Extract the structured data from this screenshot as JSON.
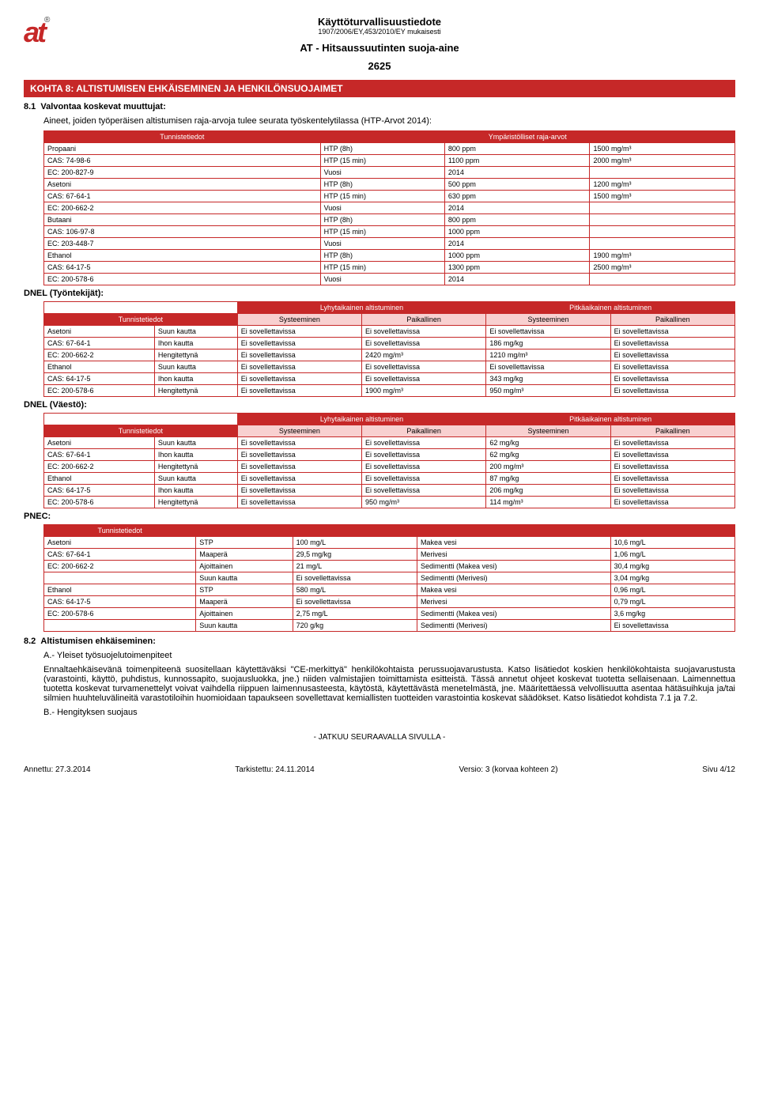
{
  "header": {
    "logo": "at",
    "logo_r": "®",
    "doc_title": "Käyttöturvallisuustiedote",
    "doc_subtitle": "1907/2006/EY,453/2010/EY mukaisesti",
    "product_title": "AT - Hitsaussuutinten suoja-aine",
    "product_code": "2625"
  },
  "section_bar": "KOHTA 8: ALTISTUMISEN EHKÄISEMINEN JA HENKILÖNSUOJAIMET",
  "s81_num": "8.1",
  "s81_title": "Valvontaa koskevat muuttujat:",
  "s81_intro": "Aineet, joiden työperäisen altistumisen raja-arvoja tulee seurata työskentelytilassa (HTP-Arvot 2014):",
  "t1_h1": "Tunnistetiedot",
  "t1_h2": "Ympäristölliset raja-arvot",
  "t1_rows": [
    [
      "Propaani",
      "HTP (8h)",
      "800 ppm",
      "1500 mg/m³"
    ],
    [
      "CAS: 74-98-6",
      "HTP (15 min)",
      "1100 ppm",
      "2000 mg/m³"
    ],
    [
      "EC: 200-827-9",
      "Vuosi",
      "2014",
      ""
    ],
    [
      "Asetoni",
      "HTP (8h)",
      "500 ppm",
      "1200 mg/m³"
    ],
    [
      "CAS: 67-64-1",
      "HTP (15 min)",
      "630 ppm",
      "1500 mg/m³"
    ],
    [
      "EC: 200-662-2",
      "Vuosi",
      "2014",
      ""
    ],
    [
      "Butaani",
      "HTP (8h)",
      "800 ppm",
      ""
    ],
    [
      "CAS: 106-97-8",
      "HTP (15 min)",
      "1000 ppm",
      ""
    ],
    [
      "EC: 203-448-7",
      "Vuosi",
      "2014",
      ""
    ],
    [
      "Ethanol",
      "HTP (8h)",
      "1000 ppm",
      "1900 mg/m³"
    ],
    [
      "CAS: 64-17-5",
      "HTP (15 min)",
      "1300 ppm",
      "2500 mg/m³"
    ],
    [
      "EC: 200-578-6",
      "Vuosi",
      "2014",
      ""
    ]
  ],
  "dnel_workers": "DNEL (Työntekijät):",
  "dnel_pop": "DNEL (Väestö):",
  "pnec": "PNEC:",
  "t2_h": {
    "lyhyt": "Lyhytaikainen altistuminen",
    "pitka": "Pitkäaikainen altistuminen",
    "tun": "Tunnistetiedot",
    "sys": "Systeeminen",
    "paik": "Paikallinen"
  },
  "t2_rows": [
    [
      "Asetoni",
      "Suun kautta",
      "Ei sovellettavissa",
      "Ei sovellettavissa",
      "Ei sovellettavissa",
      "Ei sovellettavissa"
    ],
    [
      "CAS: 67-64-1",
      "Ihon kautta",
      "Ei sovellettavissa",
      "Ei sovellettavissa",
      "186 mg/kg",
      "Ei sovellettavissa"
    ],
    [
      "EC: 200-662-2",
      "Hengitettynä",
      "Ei sovellettavissa",
      "2420 mg/m³",
      "1210 mg/m³",
      "Ei sovellettavissa"
    ],
    [
      "Ethanol",
      "Suun kautta",
      "Ei sovellettavissa",
      "Ei sovellettavissa",
      "Ei sovellettavissa",
      "Ei sovellettavissa"
    ],
    [
      "CAS: 64-17-5",
      "Ihon kautta",
      "Ei sovellettavissa",
      "Ei sovellettavissa",
      "343 mg/kg",
      "Ei sovellettavissa"
    ],
    [
      "EC: 200-578-6",
      "Hengitettynä",
      "Ei sovellettavissa",
      "1900 mg/m³",
      "950 mg/m³",
      "Ei sovellettavissa"
    ]
  ],
  "t3_rows": [
    [
      "Asetoni",
      "Suun kautta",
      "Ei sovellettavissa",
      "Ei sovellettavissa",
      "62 mg/kg",
      "Ei sovellettavissa"
    ],
    [
      "CAS: 67-64-1",
      "Ihon kautta",
      "Ei sovellettavissa",
      "Ei sovellettavissa",
      "62 mg/kg",
      "Ei sovellettavissa"
    ],
    [
      "EC: 200-662-2",
      "Hengitettynä",
      "Ei sovellettavissa",
      "Ei sovellettavissa",
      "200 mg/m³",
      "Ei sovellettavissa"
    ],
    [
      "Ethanol",
      "Suun kautta",
      "Ei sovellettavissa",
      "Ei sovellettavissa",
      "87 mg/kg",
      "Ei sovellettavissa"
    ],
    [
      "CAS: 64-17-5",
      "Ihon kautta",
      "Ei sovellettavissa",
      "Ei sovellettavissa",
      "206 mg/kg",
      "Ei sovellettavissa"
    ],
    [
      "EC: 200-578-6",
      "Hengitettynä",
      "Ei sovellettavissa",
      "950 mg/m³",
      "114 mg/m³",
      "Ei sovellettavissa"
    ]
  ],
  "t4_rows": [
    [
      "Asetoni",
      "STP",
      "100 mg/L",
      "Makea vesi",
      "10,6 mg/L"
    ],
    [
      "CAS: 67-64-1",
      "Maaperä",
      "29,5 mg/kg",
      "Merivesi",
      "1,06 mg/L"
    ],
    [
      "EC: 200-662-2",
      "Ajoittainen",
      "21 mg/L",
      "Sedimentti (Makea vesi)",
      "30,4 mg/kg"
    ],
    [
      "",
      "Suun kautta",
      "Ei sovellettavissa",
      "Sedimentti (Merivesi)",
      "3,04 mg/kg"
    ],
    [
      "Ethanol",
      "STP",
      "580 mg/L",
      "Makea vesi",
      "0,96 mg/L"
    ],
    [
      "CAS: 64-17-5",
      "Maaperä",
      "Ei sovellettavissa",
      "Merivesi",
      "0,79 mg/L"
    ],
    [
      "EC: 200-578-6",
      "Ajoittainen",
      "2,75 mg/L",
      "Sedimentti (Makea vesi)",
      "3,6 mg/kg"
    ],
    [
      "",
      "Suun kautta",
      "720 g/kg",
      "Sedimentti (Merivesi)",
      "Ei sovellettavissa"
    ]
  ],
  "s82_num": "8.2",
  "s82_title": "Altistumisen ehkäiseminen:",
  "s82_a": "A.- Yleiset työsuojelutoimenpiteet",
  "s82_a_text": "Ennaltaehkäisevänä toimenpiteenä suositellaan käytettäväksi \"CE-merkittyä\" henkilökohtaista perussuojavarustusta. Katso lisätiedot koskien henkilökohtaista suojavarustusta (varastointi, käyttö, puhdistus, kunnossapito, suojausluokka, jne.) niiden valmistajien toimittamista esitteistä. Tässä annetut ohjeet koskevat tuotetta sellaisenaan. Laimennettua tuotetta koskevat turvamenettelyt voivat vaihdella riippuen laimennusasteesta, käytöstä, käytettävästä menetelmästä, jne. Määritettäessä velvollisuutta asentaa hätäsuihkuja ja/tai silmien huuhteluvälineitä varastotiloihin huomioidaan tapaukseen sovellettavat kemiallisten tuotteiden varastointia koskevat säädökset. Katso lisätiedot kohdista 7.1 ja 7.2.",
  "s82_b": "B.- Hengityksen suojaus",
  "continue": "- JATKUU SEURAAVALLA SIVULLA -",
  "footer": {
    "l": "Annettu: 27.3.2014",
    "m1": "Tarkistettu: 24.11.2014",
    "m2": "Versio: 3 (korvaa kohteen 2)",
    "r": "Sivu 4/12"
  }
}
